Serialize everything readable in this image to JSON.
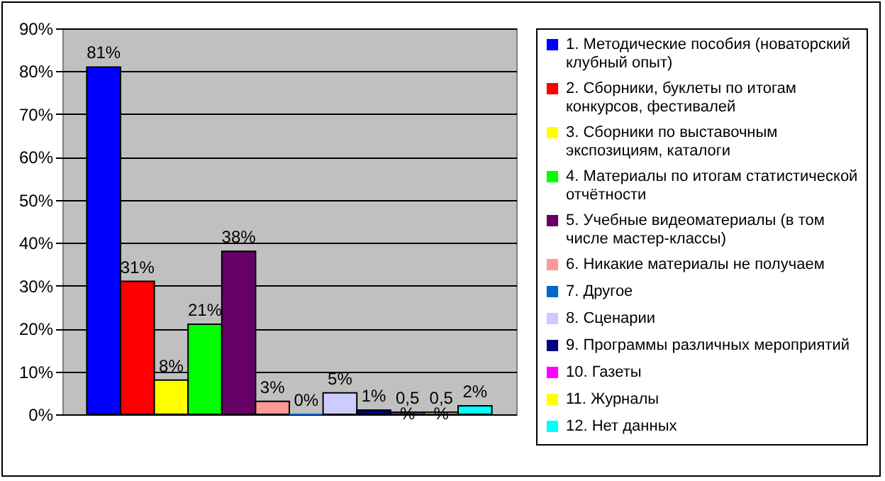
{
  "chart_data": {
    "type": "bar",
    "categories": [
      null
    ],
    "ylim": [
      0,
      90
    ],
    "yticks": [
      {
        "value": 0,
        "label": "0%"
      },
      {
        "value": 10,
        "label": "10%"
      },
      {
        "value": 20,
        "label": "20%"
      },
      {
        "value": 30,
        "label": "30%"
      },
      {
        "value": 40,
        "label": "40%"
      },
      {
        "value": 50,
        "label": "50%"
      },
      {
        "value": 60,
        "label": "60%"
      },
      {
        "value": 70,
        "label": "70%"
      },
      {
        "value": 80,
        "label": "80%"
      },
      {
        "value": 90,
        "label": "90%"
      }
    ],
    "grid": "y",
    "legend": "right",
    "tick_labels": "y",
    "series": [
      {
        "name": "1. Методические пособия (новаторский клубный опыт)",
        "color": "#0000ff",
        "values": [
          81
        ],
        "value_labels": [
          "81%"
        ]
      },
      {
        "name": "2. Сборники, буклеты по итогам конкурсов, фестивалей",
        "color": "#ff0000",
        "values": [
          31
        ],
        "value_labels": [
          "31%"
        ]
      },
      {
        "name": "3. Сборники по выставочным экспозициям, каталоги",
        "color": "#ffff00",
        "values": [
          8
        ],
        "value_labels": [
          "8%"
        ]
      },
      {
        "name": "4. Материалы по итогам статистической отчётности",
        "color": "#00ff00",
        "values": [
          21
        ],
        "value_labels": [
          "21%"
        ]
      },
      {
        "name": "5. Учебные видеоматериалы (в том числе мастер-классы)",
        "color": "#660066",
        "values": [
          38
        ],
        "value_labels": [
          "38%"
        ]
      },
      {
        "name": "6. Никакие материалы не получаем",
        "color": "#ff9999",
        "values": [
          3
        ],
        "value_labels": [
          "3%"
        ]
      },
      {
        "name": "7. Другое",
        "color": "#0066cc",
        "values": [
          0
        ],
        "value_labels": [
          "0%"
        ]
      },
      {
        "name": "8. Сценарии",
        "color": "#ccccff",
        "values": [
          5
        ],
        "value_labels": [
          "5%"
        ]
      },
      {
        "name": "9. Программы различных мероприятий",
        "color": "#000080",
        "values": [
          1
        ],
        "value_labels": [
          "1%"
        ]
      },
      {
        "name": "10. Газеты",
        "color": "#ff00ff",
        "values": [
          0.5
        ],
        "value_labels": [
          "0,5 %"
        ]
      },
      {
        "name": "11. Журналы",
        "color": "#ffff00",
        "values": [
          0.5
        ],
        "value_labels": [
          "0,5 %"
        ]
      },
      {
        "name": "12. Нет данных",
        "color": "#00ffff",
        "values": [
          2
        ],
        "value_labels": [
          "2%"
        ]
      }
    ]
  }
}
